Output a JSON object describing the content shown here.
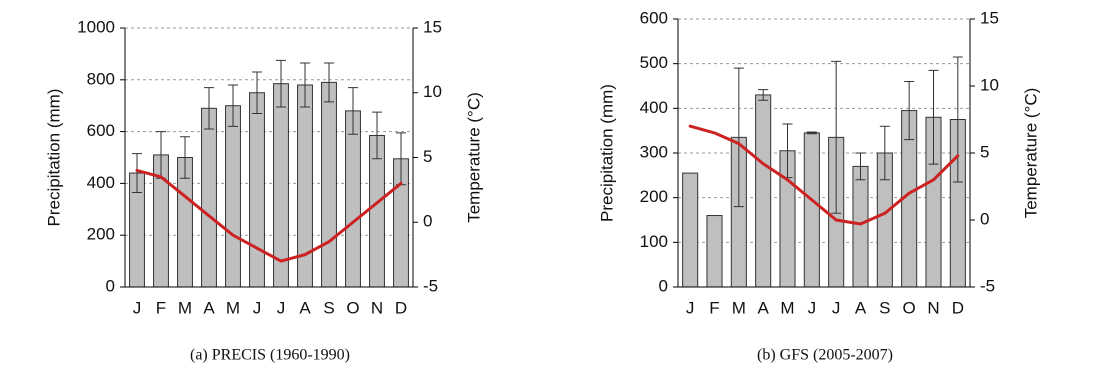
{
  "chart_data": [
    {
      "type": "bar",
      "caption": "(a) PRECIS (1960-1990)",
      "ylabel": "Precipitation (mm)",
      "y2label": "Temperature (°C)",
      "categories": [
        "J",
        "F",
        "M",
        "A",
        "M",
        "J",
        "J",
        "A",
        "S",
        "O",
        "N",
        "D"
      ],
      "ylim": [
        0,
        1000
      ],
      "yticks": [
        0,
        200,
        400,
        600,
        800,
        1000
      ],
      "y2lim": [
        -5,
        15
      ],
      "y2ticks": [
        -5,
        0,
        5,
        10,
        15
      ],
      "grid": true,
      "series": [
        {
          "type": "bar",
          "color": "#bfbfbf",
          "values": [
            440,
            510,
            500,
            690,
            700,
            750,
            785,
            780,
            790,
            680,
            585,
            495
          ],
          "errors": [
            75,
            90,
            80,
            80,
            80,
            80,
            90,
            85,
            75,
            90,
            90,
            100
          ]
        },
        {
          "type": "line",
          "axis": "y2",
          "color": "#cc2222",
          "values": [
            4,
            3.5,
            2,
            0.5,
            -1,
            -2,
            -3,
            -2.5,
            -1.5,
            0,
            1.5,
            3
          ]
        }
      ]
    },
    {
      "type": "bar",
      "caption": "(b) GFS (2005-2007)",
      "ylabel": "Precipitation (mm)",
      "y2label": "Temperature (°C)",
      "categories": [
        "J",
        "F",
        "M",
        "A",
        "M",
        "J",
        "J",
        "A",
        "S",
        "O",
        "N",
        "D"
      ],
      "ylim": [
        0,
        600
      ],
      "yticks": [
        0,
        100,
        200,
        300,
        400,
        500,
        600
      ],
      "y2lim": [
        -5,
        15
      ],
      "y2ticks": [
        -5,
        0,
        5,
        10,
        15
      ],
      "grid": true,
      "series": [
        {
          "type": "bar",
          "color": "#bfbfbf",
          "values": [
            255,
            160,
            335,
            430,
            305,
            345,
            335,
            270,
            300,
            395,
            380,
            375
          ],
          "errors": [
            null,
            null,
            155,
            12,
            60,
            2,
            170,
            30,
            60,
            65,
            105,
            140
          ]
        },
        {
          "type": "line",
          "axis": "y2",
          "color": "#cc2222",
          "values": [
            7,
            6.5,
            5.7,
            4.2,
            3,
            1.5,
            0,
            -0.3,
            0.5,
            2,
            3,
            4.8
          ]
        }
      ]
    }
  ]
}
